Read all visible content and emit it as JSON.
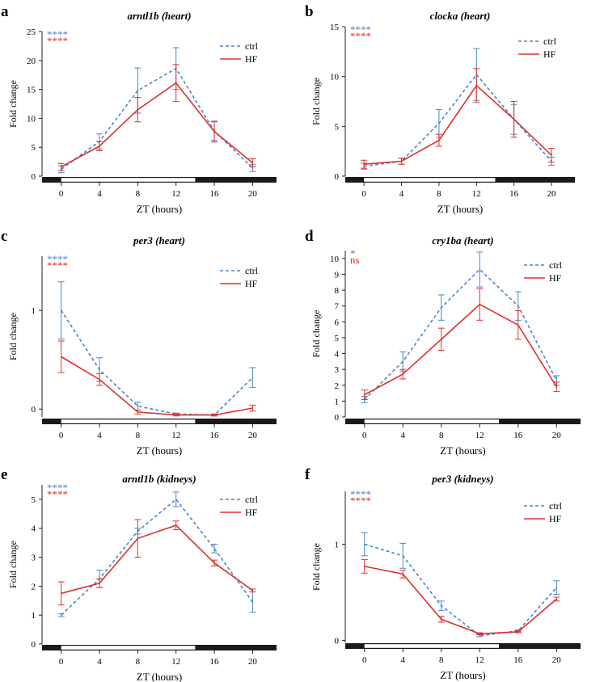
{
  "colors": {
    "ctrl": "#4a86c8",
    "hf": "#e0302a",
    "axis": "#222222",
    "bar_dark": "#1a1a1a",
    "bar_light": "#ffffff"
  },
  "chart_data": [
    {
      "type": "line",
      "panel_letter": "a",
      "title": "arntl1b (heart)",
      "xlabel": "ZT (hours)",
      "ylabel": "Fold change",
      "x": [
        0,
        4,
        8,
        12,
        16,
        20
      ],
      "xlim": [
        -2,
        22.5
      ],
      "light_phase": [
        0,
        14
      ],
      "ylim": [
        0,
        25
      ],
      "yticks": [
        0,
        5,
        10,
        15,
        20,
        25
      ],
      "stats": [
        {
          "text": "****",
          "color": "ctrl"
        },
        {
          "text": "****",
          "color": "hf"
        }
      ],
      "series": [
        {
          "name": "ctrl",
          "style": "dashed",
          "color": "ctrl",
          "values": [
            1.2,
            6,
            14.8,
            18.6,
            7.8,
            1.4
          ],
          "err": [
            0.6,
            1.3,
            3.9,
            3.6,
            1.6,
            0.6
          ]
        },
        {
          "name": "HF",
          "style": "solid",
          "color": "hf",
          "values": [
            1.6,
            5.2,
            11.5,
            16.1,
            7.7,
            2.3
          ],
          "err": [
            0.6,
            0.8,
            2.1,
            3.2,
            1.8,
            0.7
          ]
        }
      ]
    },
    {
      "type": "line",
      "panel_letter": "b",
      "title": "clocka (heart)",
      "xlabel": "ZT (hours)",
      "ylabel": "Fold change",
      "x": [
        0,
        4,
        8,
        12,
        16,
        20
      ],
      "xlim": [
        -2,
        22.5
      ],
      "light_phase": [
        0,
        14
      ],
      "ylim": [
        0,
        15
      ],
      "yticks": [
        0,
        5,
        10,
        15
      ],
      "stats": [
        {
          "text": "****",
          "color": "ctrl"
        },
        {
          "text": "****",
          "color": "hf"
        }
      ],
      "series": [
        {
          "name": "ctrl",
          "style": "dashed",
          "color": "ctrl",
          "values": [
            1,
            1.5,
            5.3,
            10.2,
            5.7,
            1.5
          ],
          "err": [
            0.3,
            0.3,
            1.4,
            2.6,
            1.5,
            0.4
          ]
        },
        {
          "name": "HF",
          "style": "solid",
          "color": "hf",
          "values": [
            1.2,
            1.5,
            3.6,
            9.1,
            5.7,
            2.1
          ],
          "err": [
            0.4,
            0.3,
            0.6,
            1.7,
            1.8,
            0.7
          ]
        }
      ]
    },
    {
      "type": "line",
      "panel_letter": "c",
      "title": "per3 (heart)",
      "xlabel": "ZT (hours)",
      "ylabel": "Fold change",
      "x": [
        0,
        4,
        8,
        12,
        16,
        20
      ],
      "xlim": [
        -2,
        22.5
      ],
      "light_phase": [
        0,
        14
      ],
      "ylim": [
        -0.08,
        1.55
      ],
      "yticks": [
        0,
        1
      ],
      "stats": [
        {
          "text": "****",
          "color": "ctrl"
        },
        {
          "text": "****",
          "color": "hf"
        }
      ],
      "series": [
        {
          "name": "ctrl",
          "style": "dashed",
          "color": "ctrl",
          "values": [
            1,
            0.4,
            0.03,
            -0.05,
            -0.06,
            0.32
          ],
          "err": [
            0.29,
            0.12,
            0.04,
            0.01,
            0.01,
            0.1
          ]
        },
        {
          "name": "HF",
          "style": "solid",
          "color": "hf",
          "values": [
            0.53,
            0.3,
            -0.03,
            -0.06,
            -0.06,
            0.01
          ],
          "err": [
            0.16,
            0.06,
            0.02,
            0.01,
            0.01,
            0.03
          ]
        }
      ]
    },
    {
      "type": "line",
      "panel_letter": "d",
      "title": "cry1ba (heart)",
      "xlabel": "ZT (hours)",
      "ylabel": "Fold change",
      "x": [
        0,
        4,
        8,
        12,
        16,
        20
      ],
      "xlim": [
        -2,
        22.5
      ],
      "light_phase": [
        0,
        14
      ],
      "ylim": [
        0,
        10.5
      ],
      "yticks": [
        0,
        1,
        2,
        3,
        4,
        5,
        6,
        7,
        8,
        9,
        10
      ],
      "stats": [
        {
          "text": "*",
          "color": "ctrl"
        },
        {
          "text": "ns",
          "color": "hf"
        }
      ],
      "series": [
        {
          "name": "ctrl",
          "style": "dashed",
          "color": "ctrl",
          "values": [
            1.1,
            3.5,
            6.9,
            9.3,
            7,
            2.3
          ],
          "err": [
            0.2,
            0.6,
            0.8,
            1.1,
            0.9,
            0.3
          ]
        },
        {
          "name": "HF",
          "style": "solid",
          "color": "hf",
          "values": [
            1.4,
            2.7,
            4.9,
            7.1,
            5.8,
            1.9
          ],
          "err": [
            0.3,
            0.3,
            0.7,
            1,
            0.9,
            0.3
          ]
        }
      ]
    },
    {
      "type": "line",
      "panel_letter": "e",
      "title": "arntl1b (kidneys)",
      "xlabel": "ZT (hours)",
      "ylabel": "Fold change",
      "x": [
        0,
        4,
        8,
        12,
        16,
        20
      ],
      "xlim": [
        -2,
        22.5
      ],
      "light_phase": [
        0,
        14
      ],
      "ylim": [
        0,
        5.5
      ],
      "yticks": [
        0,
        1,
        2,
        3,
        4,
        5
      ],
      "stats": [
        {
          "text": "****",
          "color": "ctrl"
        },
        {
          "text": "****",
          "color": "hf"
        }
      ],
      "series": [
        {
          "name": "ctrl",
          "style": "dashed",
          "color": "ctrl",
          "values": [
            1,
            2.25,
            3.9,
            5,
            3.3,
            1.45
          ],
          "err": [
            0.05,
            0.3,
            0.1,
            0.25,
            0.15,
            0.35
          ]
        },
        {
          "name": "HF",
          "style": "solid",
          "color": "hf",
          "values": [
            1.75,
            2.1,
            3.65,
            4.1,
            2.8,
            1.85
          ],
          "err": [
            0.4,
            0.15,
            0.65,
            0.15,
            0.1,
            0.05
          ]
        }
      ]
    },
    {
      "type": "line",
      "panel_letter": "f",
      "title": "per3 (kidneys)",
      "xlabel": "ZT (hours)",
      "ylabel": "Fold change",
      "x": [
        0,
        4,
        8,
        12,
        16,
        20
      ],
      "xlim": [
        -2,
        22.5
      ],
      "light_phase": [
        0,
        14
      ],
      "ylim": [
        -0.02,
        1.55
      ],
      "yticks": [
        0,
        1
      ],
      "stats": [
        {
          "text": "****",
          "color": "ctrl"
        },
        {
          "text": "****",
          "color": "hf"
        }
      ],
      "series": [
        {
          "name": "ctrl",
          "style": "dashed",
          "color": "ctrl",
          "values": [
            1,
            0.88,
            0.36,
            0.05,
            0.1,
            0.55
          ],
          "err": [
            0.12,
            0.13,
            0.05,
            0.01,
            0.01,
            0.07
          ]
        },
        {
          "name": "HF",
          "style": "solid",
          "color": "hf",
          "values": [
            0.77,
            0.69,
            0.22,
            0.07,
            0.09,
            0.43
          ],
          "err": [
            0.07,
            0.04,
            0.03,
            0.01,
            0.01,
            0.02
          ]
        }
      ]
    }
  ]
}
